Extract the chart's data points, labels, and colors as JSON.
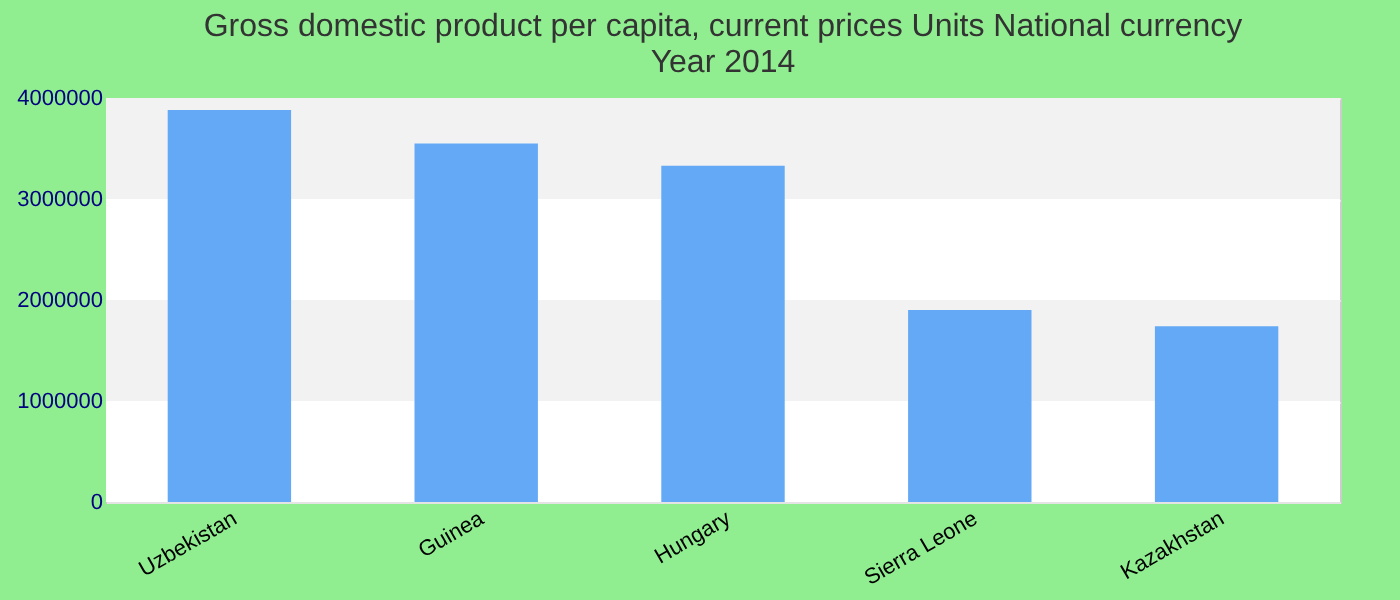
{
  "chart_data": {
    "type": "bar",
    "title": [
      "Gross domestic product per capita, current prices Units National currency",
      "Year 2014"
    ],
    "categories": [
      "Uzbekistan",
      "Guinea",
      "Hungary",
      "Sierra Leone",
      "Kazakhstan"
    ],
    "values": [
      3880000,
      3550000,
      3330000,
      1900000,
      1740000
    ],
    "color": "#63a9f5",
    "ylim": [
      0,
      4000000
    ],
    "yticks": [
      0,
      1000000,
      2000000,
      3000000,
      4000000
    ],
    "grid": "y"
  }
}
